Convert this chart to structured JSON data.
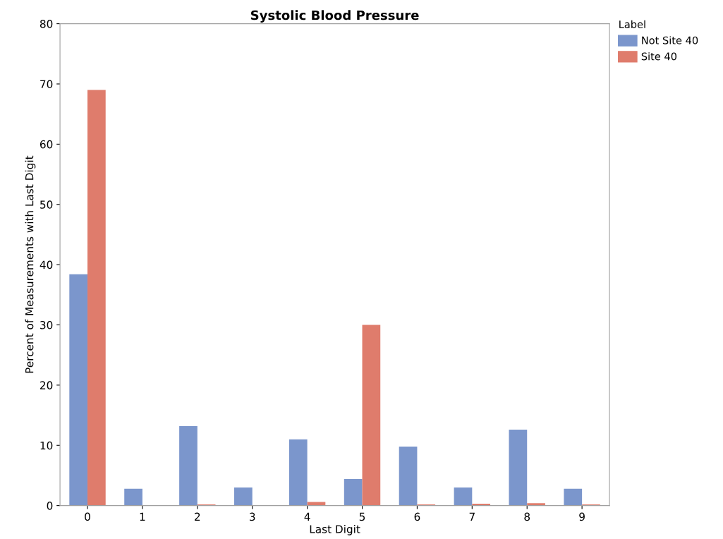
{
  "chart_data": {
    "type": "bar",
    "title": "Systolic Blood Pressure",
    "xlabel": "Last Digit",
    "ylabel": "Percent of Measurements with Last Digit",
    "legend_title": "Label",
    "categories": [
      "0",
      "1",
      "2",
      "3",
      "4",
      "5",
      "6",
      "7",
      "8",
      "9"
    ],
    "series": [
      {
        "name": "Not Site 40",
        "color": "#7b96cc",
        "values": [
          38.4,
          2.8,
          13.2,
          3.0,
          11.0,
          4.4,
          9.8,
          3.0,
          12.6,
          2.8
        ]
      },
      {
        "name": "Site 40",
        "color": "#df7c6c",
        "values": [
          69.0,
          0,
          0.2,
          0,
          0.6,
          30.0,
          0.2,
          0.3,
          0.4,
          0.2
        ]
      }
    ],
    "ylim": [
      0,
      80
    ],
    "yticks": [
      0,
      10,
      20,
      30,
      40,
      50,
      60,
      70,
      80
    ],
    "grid": false,
    "legend": "right"
  }
}
